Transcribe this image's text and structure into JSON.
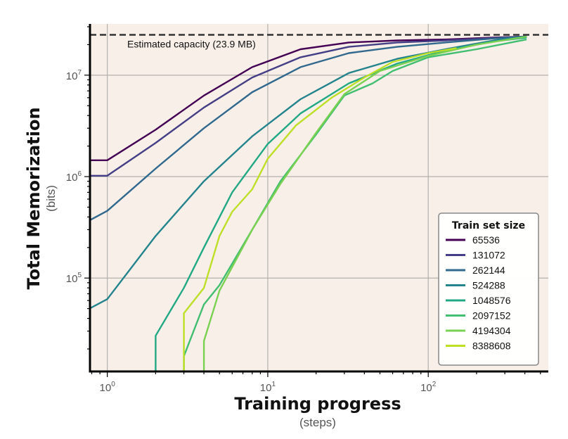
{
  "chart_data": {
    "type": "line",
    "xlabel": "Training progress",
    "xlabel_unit": "(steps)",
    "ylabel": "Total Memorization",
    "ylabel_unit": "(bits)",
    "x_scale": "log",
    "y_scale": "log",
    "xlim": [
      0.78,
      560
    ],
    "ylim": [
      12000,
      32000000
    ],
    "x_ticks": [
      {
        "base": "10",
        "exp": "0",
        "value": 1
      },
      {
        "base": "10",
        "exp": "1",
        "value": 10
      },
      {
        "base": "10",
        "exp": "2",
        "value": 100
      }
    ],
    "y_ticks": [
      {
        "base": "10",
        "exp": "5",
        "value": 100000
      },
      {
        "base": "10",
        "exp": "6",
        "value": 1000000
      },
      {
        "base": "10",
        "exp": "7",
        "value": 10000000
      }
    ],
    "grid": true,
    "background": "#f8f0e8",
    "capacity_line": {
      "value": 25000000,
      "label": "Estimated capacity (23.9 MB)",
      "color": "#333333"
    },
    "legend": {
      "title": "Train set size",
      "placement": "lower-right"
    },
    "series": [
      {
        "name": "65536",
        "color": "#440154",
        "points": [
          [
            0.7,
            1450000
          ],
          [
            1,
            1450000
          ],
          [
            2,
            2900000
          ],
          [
            4,
            6300000
          ],
          [
            8,
            12000000
          ],
          [
            16,
            18000000
          ],
          [
            32,
            21000000
          ],
          [
            64,
            22000000
          ],
          [
            128,
            22500000
          ],
          [
            256,
            23500000
          ],
          [
            410,
            24000000
          ]
        ]
      },
      {
        "name": "131072",
        "color": "#433e85",
        "points": [
          [
            0.7,
            1020000
          ],
          [
            1,
            1020000
          ],
          [
            2,
            2150000
          ],
          [
            4,
            4800000
          ],
          [
            8,
            9500000
          ],
          [
            16,
            15000000
          ],
          [
            32,
            19000000
          ],
          [
            64,
            21000000
          ],
          [
            128,
            22000000
          ],
          [
            256,
            23300000
          ],
          [
            410,
            24000000
          ]
        ]
      },
      {
        "name": "262144",
        "color": "#31688e",
        "points": [
          [
            0.7,
            340000
          ],
          [
            1,
            460000
          ],
          [
            2,
            1200000
          ],
          [
            4,
            3000000
          ],
          [
            8,
            6800000
          ],
          [
            16,
            12000000
          ],
          [
            32,
            16500000
          ],
          [
            64,
            19000000
          ],
          [
            128,
            21000000
          ],
          [
            256,
            23000000
          ],
          [
            410,
            24000000
          ]
        ]
      },
      {
        "name": "524288",
        "color": "#25838e",
        "points": [
          [
            0.7,
            46000
          ],
          [
            1,
            62000
          ],
          [
            2,
            260000
          ],
          [
            4,
            900000
          ],
          [
            8,
            2500000
          ],
          [
            16,
            5800000
          ],
          [
            32,
            10500000
          ],
          [
            64,
            14500000
          ],
          [
            128,
            18000000
          ],
          [
            256,
            22000000
          ],
          [
            410,
            24000000
          ]
        ]
      },
      {
        "name": "1048576",
        "color": "#22a884",
        "points": [
          [
            2,
            12000
          ],
          [
            2,
            27000
          ],
          [
            3,
            80000
          ],
          [
            4,
            200000
          ],
          [
            6,
            700000
          ],
          [
            10,
            2100000
          ],
          [
            16,
            4200000
          ],
          [
            32,
            8300000
          ],
          [
            64,
            13000000
          ],
          [
            128,
            17500000
          ],
          [
            256,
            21500000
          ],
          [
            410,
            23500000
          ]
        ]
      },
      {
        "name": "2097152",
        "color": "#42be71",
        "points": [
          [
            3,
            12000
          ],
          [
            3,
            17000
          ],
          [
            4,
            55000
          ],
          [
            5,
            85000
          ],
          [
            8,
            300000
          ],
          [
            12,
            900000
          ],
          [
            20,
            2600000
          ],
          [
            30,
            6300000
          ],
          [
            45,
            8300000
          ],
          [
            60,
            11000000
          ],
          [
            100,
            15000000
          ],
          [
            200,
            18000000
          ],
          [
            410,
            22500000
          ]
        ]
      },
      {
        "name": "4194304",
        "color": "#7ad151",
        "points": [
          [
            4,
            12000
          ],
          [
            4,
            24000
          ],
          [
            5,
            75000
          ],
          [
            8,
            300000
          ],
          [
            12,
            850000
          ],
          [
            20,
            2700000
          ],
          [
            30,
            6500000
          ],
          [
            50,
            11000000
          ],
          [
            100,
            15500000
          ],
          [
            200,
            20000000
          ],
          [
            410,
            24000000
          ]
        ]
      },
      {
        "name": "8388608",
        "color": "#bddf26",
        "points": [
          [
            3,
            12000
          ],
          [
            3,
            45000
          ],
          [
            4,
            80000
          ],
          [
            5,
            260000
          ],
          [
            6,
            450000
          ],
          [
            8,
            750000
          ],
          [
            10,
            1500000
          ],
          [
            15,
            3200000
          ],
          [
            25,
            6000000
          ],
          [
            40,
            9500000
          ],
          [
            60,
            13500000
          ],
          [
            100,
            16500000
          ],
          [
            150,
            18500000
          ]
        ]
      }
    ]
  }
}
